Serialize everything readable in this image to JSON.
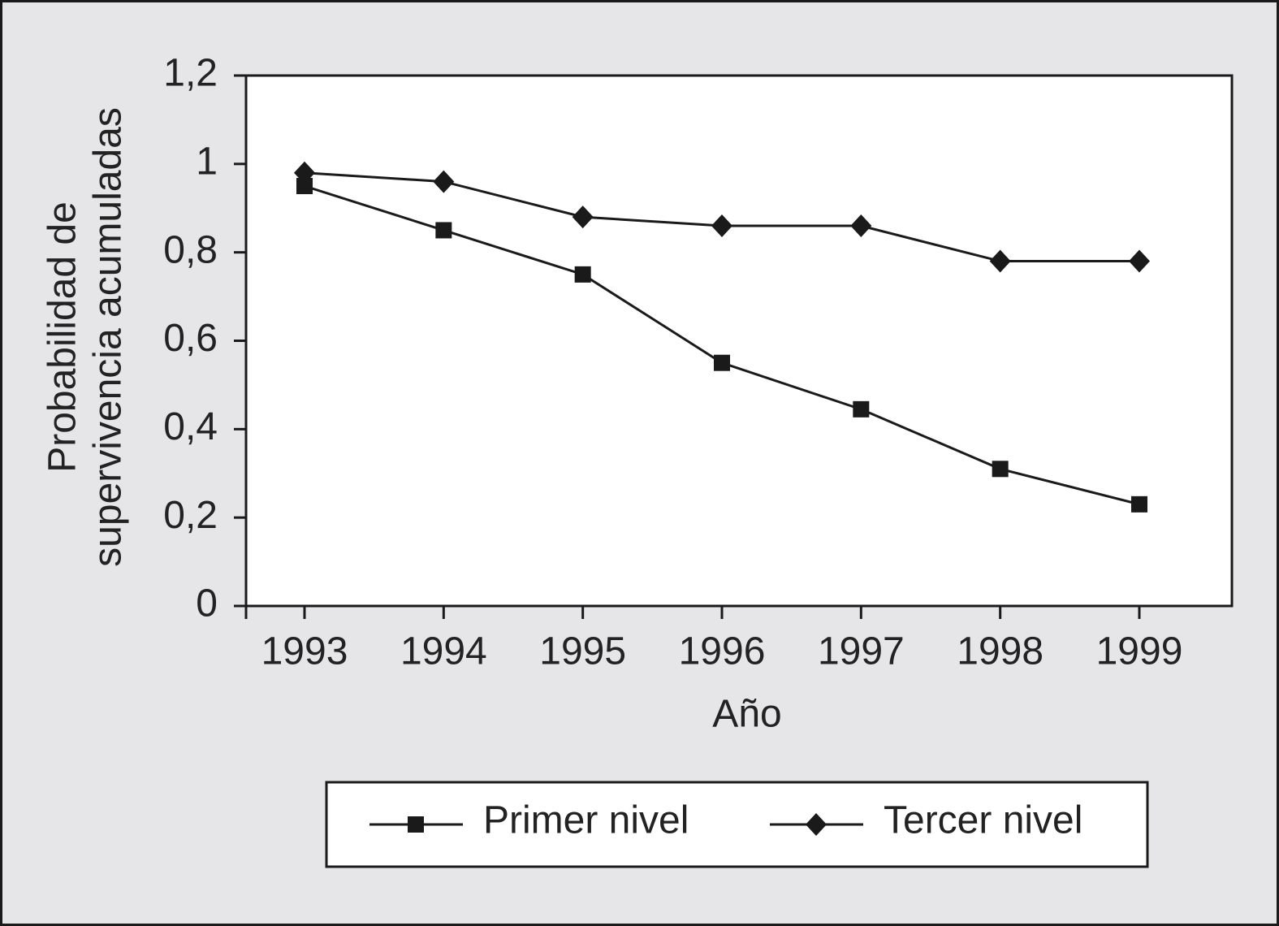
{
  "chart_data": {
    "type": "line",
    "xlabel": "Año",
    "ylabel": [
      "Probabilidad de",
      "supervivencia acumuladas"
    ],
    "categories": [
      "1993",
      "1994",
      "1995",
      "1996",
      "1997",
      "1998",
      "1999"
    ],
    "series": [
      {
        "name": "Primer nivel",
        "color": "#1a1a1a",
        "marker": "square",
        "values": [
          0.95,
          0.85,
          0.75,
          0.55,
          0.445,
          0.31,
          0.23
        ]
      },
      {
        "name": "Tercer nivel",
        "color": "#1a1a1a",
        "marker": "diamond",
        "values": [
          0.98,
          0.96,
          0.88,
          0.86,
          0.86,
          0.78,
          0.78
        ]
      }
    ],
    "ylim": [
      0,
      1.2
    ],
    "yticks": [
      0,
      {
        "value": 0.2,
        "label": "0,2"
      },
      {
        "value": 0.4,
        "label": "0,4"
      },
      {
        "value": 0.6,
        "label": "0,6"
      },
      {
        "value": 0.8,
        "label": "0,8"
      },
      1,
      {
        "value": 1.2,
        "label": "1,2"
      }
    ],
    "grid": false,
    "legend": "bottom"
  }
}
